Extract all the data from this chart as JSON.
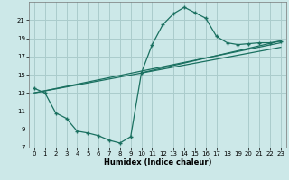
{
  "background_color": "#cce8e8",
  "grid_color": "#aacccc",
  "line_color": "#1a7060",
  "xlabel": "Humidex (Indice chaleur)",
  "xlim": [
    -0.5,
    23.5
  ],
  "ylim": [
    7,
    23
  ],
  "yticks": [
    7,
    9,
    11,
    13,
    15,
    17,
    19,
    21
  ],
  "xticks": [
    0,
    1,
    2,
    3,
    4,
    5,
    6,
    7,
    8,
    9,
    10,
    11,
    12,
    13,
    14,
    15,
    16,
    17,
    18,
    19,
    20,
    21,
    22,
    23
  ],
  "curve1_x": [
    0,
    1,
    2,
    3,
    4,
    5,
    6,
    7,
    8,
    9,
    10,
    11,
    12,
    13,
    14,
    15,
    16,
    17,
    18,
    19,
    20,
    21,
    22,
    23
  ],
  "curve1_y": [
    13.5,
    13.0,
    10.8,
    10.2,
    8.8,
    8.6,
    8.3,
    7.8,
    7.5,
    8.2,
    15.2,
    18.3,
    20.5,
    21.7,
    22.4,
    21.8,
    21.2,
    19.2,
    18.5,
    18.3,
    18.4,
    18.5,
    18.5,
    18.7
  ],
  "line1_x": [
    0,
    23
  ],
  "line1_y": [
    13.0,
    18.0
  ],
  "line2_x": [
    0,
    23
  ],
  "line2_y": [
    13.0,
    18.5
  ],
  "line3_x": [
    10,
    23
  ],
  "line3_y": [
    15.2,
    18.7
  ]
}
